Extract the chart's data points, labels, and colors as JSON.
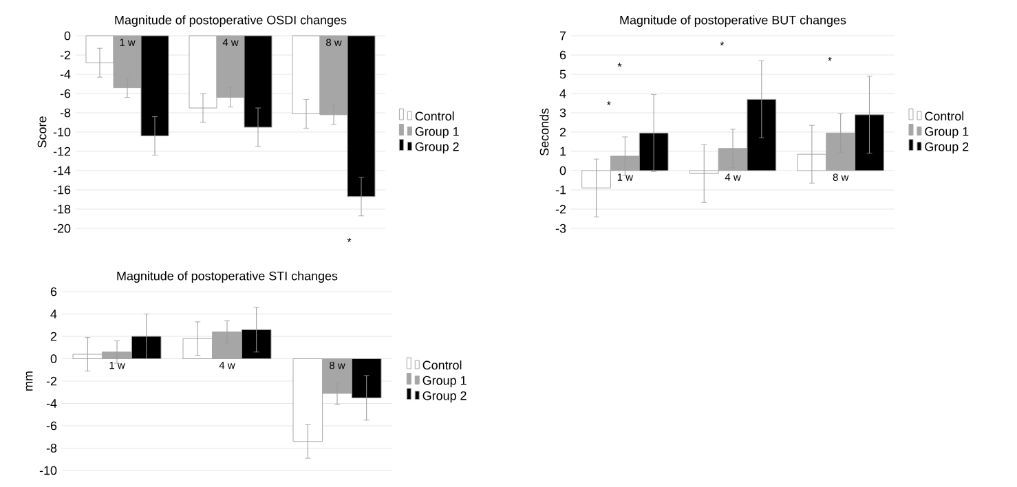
{
  "chart_data": [
    {
      "type": "bar",
      "title": "Magnitude of postoperative OSDI changes",
      "ylabel": "Score",
      "categories": [
        "1 w",
        "4 w",
        "8 w"
      ],
      "series": [
        {
          "name": "Control",
          "color": "#ffffff",
          "values": [
            -2.8,
            -7.5,
            -8.1
          ],
          "errors": [
            1.5,
            1.5,
            1.5
          ]
        },
        {
          "name": "Group 1",
          "color": "#a6a6a6",
          "values": [
            -5.4,
            -6.4,
            -8.2
          ],
          "errors": [
            1.0,
            1.0,
            1.0
          ]
        },
        {
          "name": "Group 2",
          "color": "#000000",
          "values": [
            -10.4,
            -9.5,
            -16.7
          ],
          "errors": [
            2.0,
            2.0,
            2.0
          ]
        }
      ],
      "ylim": [
        -20,
        0
      ],
      "yticks": [
        -20,
        -18,
        -16,
        -14,
        -12,
        -10,
        -8,
        -6,
        -4,
        -2,
        0
      ],
      "grid": "y",
      "legend": "right",
      "annotations": [
        "*"
      ]
    },
    {
      "type": "bar",
      "title": "Magnitude of postoperative BUT changes",
      "ylabel": "Seconds",
      "categories": [
        "1 w",
        "4 w",
        "8 w"
      ],
      "series": [
        {
          "name": "Control",
          "color": "#ffffff",
          "values": [
            -0.9,
            -0.15,
            0.85
          ],
          "errors": [
            1.5,
            1.5,
            1.5
          ]
        },
        {
          "name": "Group 1",
          "color": "#a6a6a6",
          "values": [
            0.75,
            1.15,
            1.95
          ],
          "errors": [
            1.0,
            1.0,
            1.0
          ]
        },
        {
          "name": "Group 2",
          "color": "#000000",
          "values": [
            1.95,
            3.7,
            2.9
          ],
          "errors": [
            2.0,
            2.0,
            2.0
          ]
        }
      ],
      "ylim": [
        -3,
        7
      ],
      "yticks": [
        -3,
        -2,
        -1,
        0,
        1,
        2,
        3,
        4,
        5,
        6,
        7
      ],
      "grid": "y",
      "legend": "right",
      "annotations": [
        "*",
        "*",
        "*",
        "*"
      ]
    },
    {
      "type": "bar",
      "title": "Magnitude of postoperative STI changes",
      "ylabel": "mm",
      "categories": [
        "1 w",
        "4 w",
        "8 w"
      ],
      "series": [
        {
          "name": "Control",
          "color": "#ffffff",
          "values": [
            0.4,
            1.8,
            -7.4
          ],
          "errors": [
            1.5,
            1.5,
            1.5
          ]
        },
        {
          "name": "Group 1",
          "color": "#a6a6a6",
          "values": [
            0.6,
            2.4,
            -3.1
          ],
          "errors": [
            1.0,
            1.0,
            1.0
          ]
        },
        {
          "name": "Group 2",
          "color": "#000000",
          "values": [
            2.0,
            2.6,
            -3.5
          ],
          "errors": [
            2.0,
            2.0,
            2.0
          ]
        }
      ],
      "ylim": [
        -10,
        6
      ],
      "yticks": [
        -10,
        -8,
        -6,
        -4,
        -2,
        0,
        2,
        4,
        6
      ],
      "grid": "y",
      "legend": "right"
    }
  ]
}
